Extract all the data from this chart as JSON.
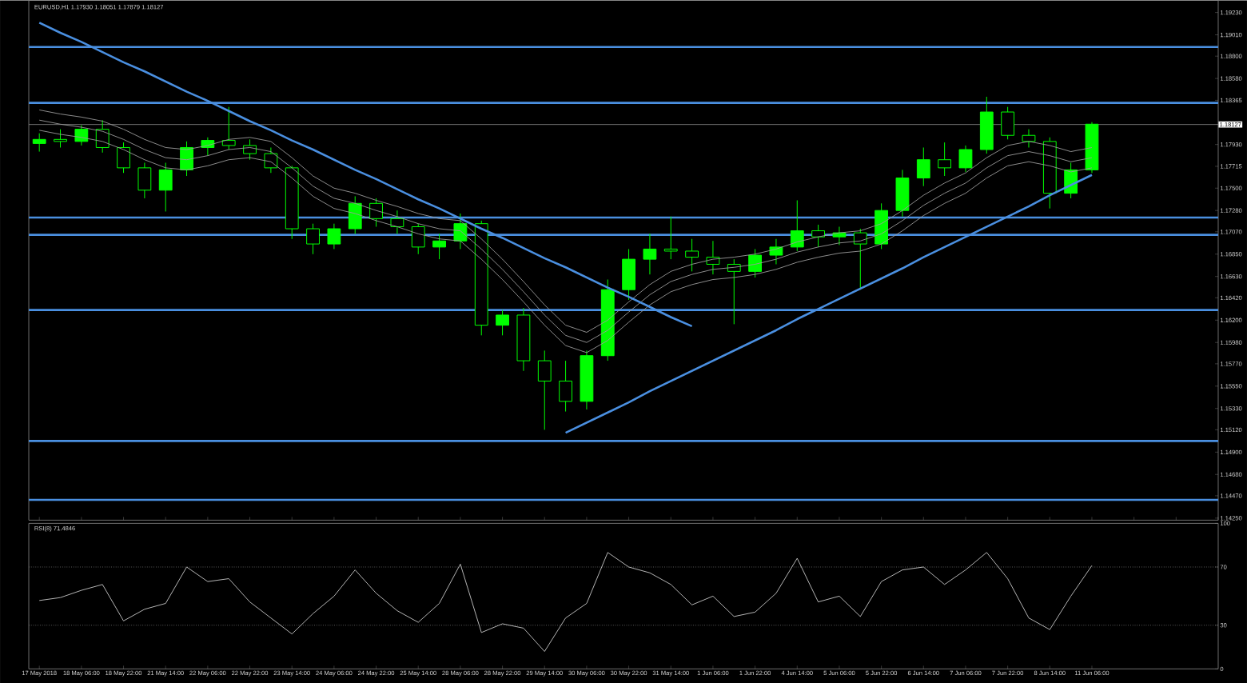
{
  "chart_data": [
    {
      "type": "candlestick",
      "title": "EURUSD,H1 1.17930 1.18051 1.17879 1.18127",
      "color": "#00ff00",
      "categories": [
        null,
        null,
        null,
        null,
        null,
        null,
        null,
        null,
        null,
        null,
        null,
        null,
        null,
        null,
        null,
        null,
        null,
        null,
        null,
        null,
        null,
        null,
        null,
        null,
        null,
        null,
        null,
        null,
        null,
        null,
        null,
        null,
        null,
        null,
        null,
        null,
        null,
        null,
        null,
        null,
        null,
        null,
        null,
        null,
        null,
        null,
        null,
        null,
        null,
        null,
        null
      ],
      "ohlc": [
        [
          1.1794,
          1.1804,
          1.1786,
          1.1798
        ],
        [
          1.1798,
          1.1808,
          1.179,
          1.1796
        ],
        [
          1.1796,
          1.1812,
          1.1792,
          1.1808
        ],
        [
          1.1808,
          1.1817,
          1.1785,
          1.179
        ],
        [
          1.179,
          1.1795,
          1.1765,
          1.177
        ],
        [
          1.177,
          1.1775,
          1.174,
          1.1748
        ],
        [
          1.1748,
          1.1775,
          1.1727,
          1.1768
        ],
        [
          1.1768,
          1.1796,
          1.1762,
          1.179
        ],
        [
          1.179,
          1.18,
          1.1782,
          1.1797
        ],
        [
          1.1797,
          1.183,
          1.1788,
          1.1792
        ],
        [
          1.1792,
          1.1798,
          1.1778,
          1.1784
        ],
        [
          1.1784,
          1.179,
          1.1765,
          1.177
        ],
        [
          1.177,
          1.1772,
          1.17,
          1.171
        ],
        [
          1.171,
          1.1715,
          1.1685,
          1.1695
        ],
        [
          1.1695,
          1.1715,
          1.169,
          1.171
        ],
        [
          1.171,
          1.1742,
          1.1705,
          1.1735
        ],
        [
          1.1735,
          1.174,
          1.1712,
          1.172
        ],
        [
          1.172,
          1.1728,
          1.1705,
          1.1712
        ],
        [
          1.1712,
          1.1715,
          1.1685,
          1.1692
        ],
        [
          1.1692,
          1.1705,
          1.168,
          1.1698
        ],
        [
          1.1698,
          1.1725,
          1.169,
          1.1715
        ],
        [
          1.1715,
          1.1718,
          1.1605,
          1.1615
        ],
        [
          1.1615,
          1.163,
          1.1605,
          1.1625
        ],
        [
          1.1625,
          1.1632,
          1.157,
          1.158
        ],
        [
          1.158,
          1.159,
          1.1512,
          1.156
        ],
        [
          1.156,
          1.158,
          1.153,
          1.154
        ],
        [
          1.154,
          1.159,
          1.1532,
          1.1585
        ],
        [
          1.1585,
          1.166,
          1.158,
          1.165
        ],
        [
          1.165,
          1.169,
          1.164,
          1.168
        ],
        [
          1.168,
          1.1705,
          1.1665,
          1.169
        ],
        [
          1.169,
          1.1722,
          1.168,
          1.1688
        ],
        [
          1.1688,
          1.17,
          1.1668,
          1.1682
        ],
        [
          1.1682,
          1.1698,
          1.1665,
          1.1675
        ],
        [
          1.1675,
          1.168,
          1.1616,
          1.1668
        ],
        [
          1.1668,
          1.169,
          1.1662,
          1.1684
        ],
        [
          1.1684,
          1.17,
          1.1675,
          1.1692
        ],
        [
          1.1692,
          1.1738,
          1.1688,
          1.1708
        ],
        [
          1.1708,
          1.1714,
          1.1692,
          1.1702
        ],
        [
          1.1702,
          1.1712,
          1.1694,
          1.1706
        ],
        [
          1.1706,
          1.171,
          1.165,
          1.1695
        ],
        [
          1.1695,
          1.1735,
          1.169,
          1.1728
        ],
        [
          1.1728,
          1.1768,
          1.1722,
          1.176
        ],
        [
          1.176,
          1.179,
          1.1752,
          1.1778
        ],
        [
          1.1778,
          1.1795,
          1.1762,
          1.177
        ],
        [
          1.177,
          1.1792,
          1.1766,
          1.1788
        ],
        [
          1.1788,
          1.184,
          1.1784,
          1.1825
        ],
        [
          1.1825,
          1.183,
          1.1798,
          1.1802
        ],
        [
          1.1802,
          1.1808,
          1.179,
          1.1796
        ],
        [
          1.1796,
          1.18,
          1.173,
          1.1745
        ],
        [
          1.1745,
          1.1775,
          1.174,
          1.1768
        ],
        [
          1.1768,
          1.1815,
          1.1765,
          1.1813
        ]
      ],
      "series": [
        {
          "type": "line",
          "color": "#9a9a9a",
          "values": [
            1.1827,
            1.1823,
            1.182,
            1.1816,
            1.1808,
            1.1798,
            1.179,
            1.1788,
            1.1792,
            1.1798,
            1.18,
            1.1796,
            1.178,
            1.1762,
            1.175,
            1.1745,
            1.1738,
            1.1732,
            1.1725,
            1.172,
            1.1718,
            1.17,
            1.168,
            1.1658,
            1.1635,
            1.1615,
            1.1608,
            1.162,
            1.1638,
            1.1655,
            1.1668,
            1.1675,
            1.168,
            1.1682,
            1.1685,
            1.169,
            1.1697,
            1.1702,
            1.1706,
            1.1708,
            1.1715,
            1.1728,
            1.1743,
            1.1755,
            1.1765,
            1.178,
            1.1792,
            1.1796,
            1.1792,
            1.1786,
            1.179
          ]
        },
        {
          "type": "line",
          "color": "#9a9a9a",
          "values": [
            1.1817,
            1.1813,
            1.181,
            1.1806,
            1.1798,
            1.1788,
            1.178,
            1.1778,
            1.1782,
            1.1788,
            1.179,
            1.1786,
            1.177,
            1.1752,
            1.174,
            1.1735,
            1.1728,
            1.1722,
            1.1715,
            1.171,
            1.1708,
            1.169,
            1.167,
            1.1648,
            1.1625,
            1.1605,
            1.1598,
            1.161,
            1.1628,
            1.1645,
            1.1658,
            1.1665,
            1.167,
            1.1672,
            1.1675,
            1.168,
            1.1687,
            1.1692,
            1.1696,
            1.1698,
            1.1705,
            1.1718,
            1.1733,
            1.1745,
            1.1755,
            1.177,
            1.1782,
            1.1786,
            1.1782,
            1.1776,
            1.178
          ]
        },
        {
          "type": "line",
          "color": "#9a9a9a",
          "values": [
            1.1807,
            1.1803,
            1.18,
            1.1796,
            1.1788,
            1.1778,
            1.177,
            1.1768,
            1.1772,
            1.1778,
            1.178,
            1.1776,
            1.176,
            1.1742,
            1.173,
            1.1725,
            1.1718,
            1.1712,
            1.1705,
            1.17,
            1.1698,
            1.168,
            1.166,
            1.1638,
            1.1615,
            1.1595,
            1.1588,
            1.16,
            1.1618,
            1.1635,
            1.1648,
            1.1655,
            1.166,
            1.1662,
            1.1665,
            1.167,
            1.1677,
            1.1682,
            1.1686,
            1.1688,
            1.1695,
            1.1708,
            1.1723,
            1.1735,
            1.1745,
            1.176,
            1.1772,
            1.1776,
            1.1772,
            1.1766,
            1.177
          ]
        },
        {
          "type": "line",
          "color": "#4a8fe0",
          "values": [
            1.1913,
            1.1903,
            1.1894,
            1.1884,
            1.1874,
            1.1865,
            1.1855,
            1.1845,
            1.1836,
            1.1826,
            1.1816,
            1.1807,
            1.1797,
            1.1788,
            1.1778,
            1.1768,
            1.1759,
            1.1749,
            1.1739,
            1.173,
            1.172,
            1.171,
            1.1701,
            1.1691,
            1.1681,
            1.1672,
            1.1662,
            1.1652,
            1.1643,
            1.1633,
            1.1623,
            1.1614,
            null,
            null,
            null,
            null,
            null,
            null,
            null,
            null,
            null,
            null,
            null,
            null,
            null,
            null,
            null,
            null,
            null,
            null,
            null
          ]
        },
        {
          "type": "line",
          "color": "#4a8fe0",
          "values": [
            null,
            null,
            null,
            null,
            null,
            null,
            null,
            null,
            null,
            null,
            null,
            null,
            null,
            null,
            null,
            null,
            null,
            null,
            null,
            null,
            null,
            null,
            null,
            null,
            null,
            1.1509,
            1.1519,
            1.1529,
            1.1539,
            1.155,
            1.156,
            1.157,
            1.158,
            1.159,
            1.16,
            1.161,
            1.1621,
            1.1631,
            1.1641,
            1.1651,
            1.1661,
            1.1671,
            1.1682,
            1.1692,
            1.1702,
            1.1712,
            1.1722,
            1.1732,
            1.1743,
            1.1753,
            1.1763
          ]
        }
      ],
      "ylim": [
        1.1423,
        1.1935
      ],
      "yticks": [
        {
          "value": 1.1425,
          "label": "1.14250"
        },
        {
          "value": 1.1447,
          "label": "1.14470"
        },
        {
          "value": 1.1468,
          "label": "1.14680"
        },
        {
          "value": 1.149,
          "label": "1.14900"
        },
        {
          "value": 1.1512,
          "label": "1.15120"
        },
        {
          "value": 1.1533,
          "label": "1.15330"
        },
        {
          "value": 1.1555,
          "label": "1.15550"
        },
        {
          "value": 1.1577,
          "label": "1.15770"
        },
        {
          "value": 1.1598,
          "label": "1.15980"
        },
        {
          "value": 1.162,
          "label": "1.16200"
        },
        {
          "value": 1.1642,
          "label": "1.16420"
        },
        {
          "value": 1.1663,
          "label": "1.16630"
        },
        {
          "value": 1.1685,
          "label": "1.16850"
        },
        {
          "value": 1.1707,
          "label": "1.17070"
        },
        {
          "value": 1.1728,
          "label": "1.17280"
        },
        {
          "value": 1.175,
          "label": "1.17500"
        },
        {
          "value": 1.17715,
          "label": "1.17715"
        },
        {
          "value": 1.1793,
          "label": "1.17930"
        },
        {
          "value": 1.18365,
          "label": "1.18365"
        },
        {
          "value": 1.1858,
          "label": "1.18580"
        },
        {
          "value": 1.188,
          "label": "1.18800"
        },
        {
          "value": 1.1901,
          "label": "1.19010"
        },
        {
          "value": 1.1923,
          "label": "1.19230"
        }
      ],
      "ref_lines": [
        {
          "axis": "y",
          "value": 1.1889,
          "color": "#4a8fe0"
        },
        {
          "axis": "y",
          "value": 1.1834,
          "color": "#4a8fe0"
        },
        {
          "axis": "y",
          "value": 1.1721,
          "color": "#4a8fe0"
        },
        {
          "axis": "y",
          "value": 1.1704,
          "color": "#4a8fe0"
        },
        {
          "axis": "y",
          "value": 1.163,
          "color": "#4a8fe0"
        },
        {
          "axis": "y",
          "value": 1.1501,
          "color": "#4a8fe0"
        },
        {
          "axis": "y",
          "value": 1.1443,
          "color": "#4a8fe0"
        },
        {
          "axis": "y",
          "value": 1.18127,
          "label": "1.18127",
          "color": "#8c8c8c"
        }
      ],
      "tick_labels": "y"
    },
    {
      "type": "line",
      "title": "RSI(8) 71.4846",
      "categories": [
        "17 May 2018",
        null,
        "18 May 06:00",
        null,
        "18 May 22:00",
        null,
        "21 May 14:00",
        null,
        "22 May 06:00",
        null,
        "22 May 22:00",
        null,
        "23 May 14:00",
        null,
        "24 May 06:00",
        null,
        "24 May 22:00",
        null,
        "25 May 14:00",
        null,
        "28 May 06:00",
        null,
        "28 May 22:00",
        null,
        "29 May 14:00",
        null,
        "30 May 06:00",
        null,
        "30 May 22:00",
        null,
        "31 May 14:00",
        null,
        "1 Jun 06:00",
        null,
        "1 Jun 22:00",
        null,
        "4 Jun 14:00",
        null,
        "5 Jun 06:00",
        null,
        "5 Jun 22:00",
        null,
        "6 Jun 14:00",
        null,
        "7 Jun 06:00",
        null,
        "7 Jun 22:00",
        null,
        "8 Jun 14:00",
        null,
        "11 Jun 06:00"
      ],
      "series": [
        {
          "color": "#c8c8c8",
          "values": [
            47,
            49,
            54,
            58,
            33,
            41,
            45,
            70,
            60,
            62,
            46,
            35,
            24,
            38,
            50,
            68,
            52,
            40,
            32,
            45,
            72,
            25,
            31,
            28,
            12,
            35,
            45,
            80,
            70,
            66,
            58,
            44,
            50,
            36,
            39,
            52,
            76,
            46,
            50,
            36,
            60,
            68,
            70,
            58,
            68,
            80,
            62,
            35,
            27,
            50,
            71
          ]
        }
      ],
      "ylim": [
        0,
        100
      ],
      "yticks": [
        0,
        30,
        70,
        100
      ],
      "ref_lines": [
        {
          "axis": "y",
          "value": 70,
          "color": "#8c8c8c",
          "line_style": "dotted"
        },
        {
          "axis": "y",
          "value": 30,
          "color": "#8c8c8c",
          "line_style": "dotted"
        }
      ]
    }
  ]
}
